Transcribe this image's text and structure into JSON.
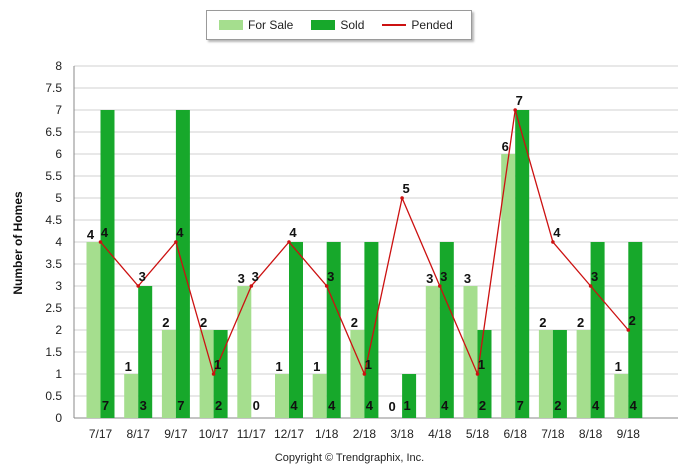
{
  "legend": {
    "for_sale": "For Sale",
    "sold": "Sold",
    "pended": "Pended"
  },
  "copyright": "Copyright © Trendgraphix, Inc.",
  "colors": {
    "for_sale": "#a5de8e",
    "sold": "#17a82b",
    "pended": "#cc1111",
    "grid": "#d0d0d0"
  },
  "chart_data": {
    "type": "bar",
    "ylabel": "Number of Homes",
    "xlabel": "",
    "ylim": [
      0,
      8
    ],
    "yticks": [
      0,
      0.5,
      1,
      1.5,
      2,
      2.5,
      3,
      3.5,
      4,
      4.5,
      5,
      5.5,
      6,
      6.5,
      7,
      7.5,
      8
    ],
    "categories": [
      "7/17",
      "8/17",
      "9/17",
      "10/17",
      "11/17",
      "12/17",
      "1/18",
      "2/18",
      "3/18",
      "4/18",
      "5/18",
      "6/18",
      "7/18",
      "8/18",
      "9/18"
    ],
    "series": [
      {
        "name": "For Sale",
        "kind": "bar",
        "values": [
          4,
          1,
          2,
          2,
          3,
          1,
          1,
          2,
          0,
          3,
          3,
          6,
          2,
          2,
          1
        ]
      },
      {
        "name": "Sold",
        "kind": "bar",
        "values": [
          7,
          3,
          7,
          2,
          0,
          4,
          4,
          4,
          1,
          4,
          2,
          7,
          2,
          4,
          4
        ]
      },
      {
        "name": "Pended",
        "kind": "line",
        "values": [
          4,
          3,
          4,
          1,
          3,
          4,
          3,
          1,
          5,
          3,
          1,
          7,
          4,
          3,
          2
        ]
      }
    ],
    "legend_position": "top-center",
    "grid": true
  }
}
